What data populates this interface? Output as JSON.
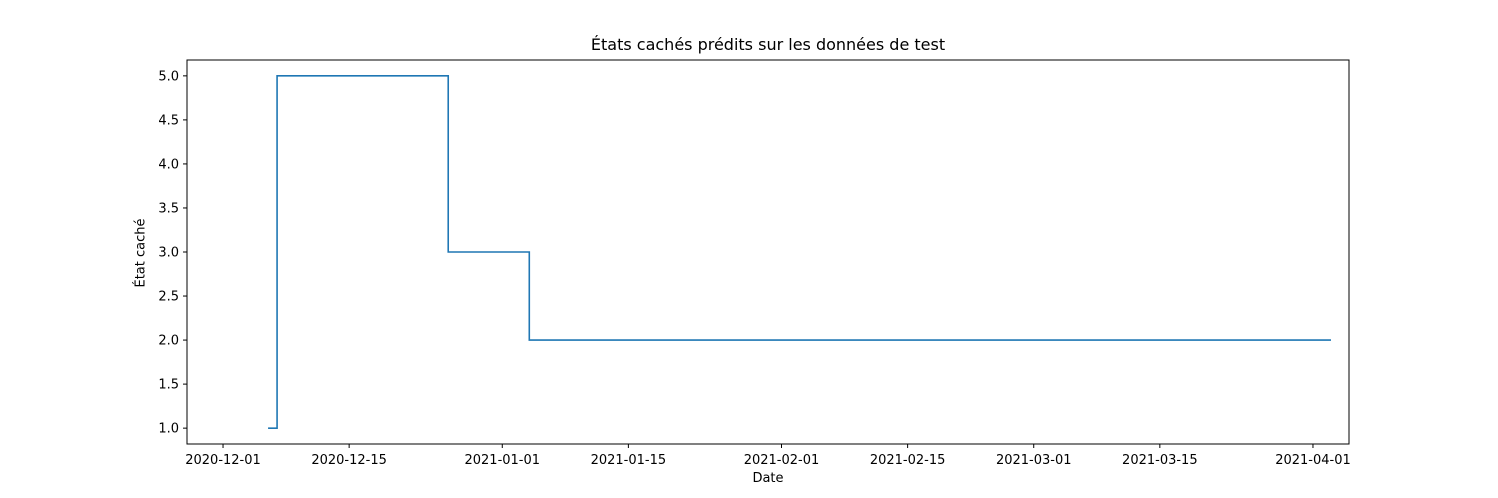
{
  "chart_data": {
    "type": "line",
    "drawstyle": "steps-post",
    "title": "États cachés prédits sur les données de test",
    "xlabel": "Date",
    "ylabel": "État caché",
    "x_ticks": [
      "2020-12-01",
      "2020-12-15",
      "2021-01-01",
      "2021-01-15",
      "2021-02-01",
      "2021-02-15",
      "2021-03-01",
      "2021-03-15",
      "2021-04-01"
    ],
    "y_ticks": [
      "1.0",
      "1.5",
      "2.0",
      "2.5",
      "3.0",
      "3.5",
      "4.0",
      "4.5",
      "5.0"
    ],
    "xlim": [
      "2020-11-27",
      "2021-04-05"
    ],
    "ylim": [
      0.82,
      5.18
    ],
    "grid": false,
    "series": [
      {
        "color": "#1f77b4",
        "x": [
          "2020-12-06",
          "2020-12-07",
          "2020-12-26",
          "2021-01-04",
          "2021-04-03"
        ],
        "y": [
          1,
          5,
          3,
          2,
          2
        ]
      }
    ]
  }
}
